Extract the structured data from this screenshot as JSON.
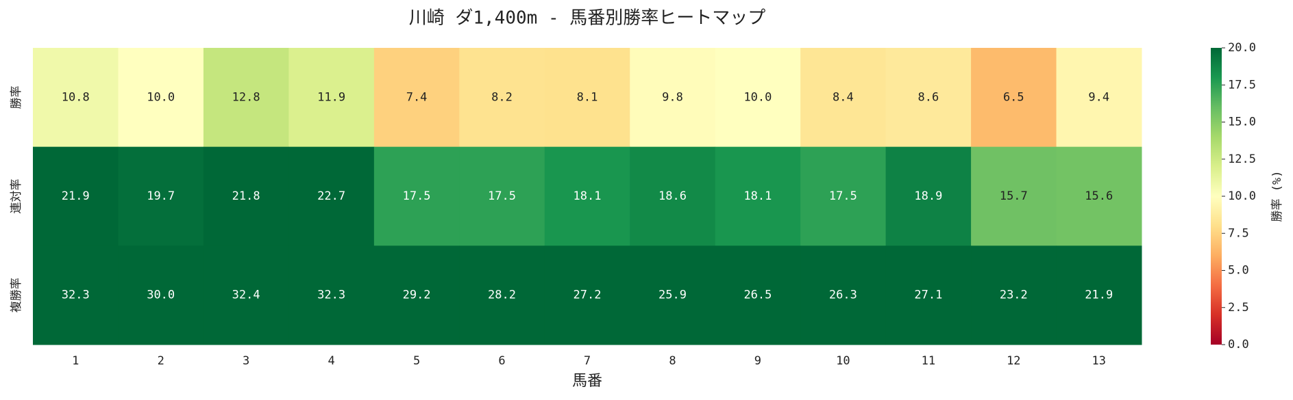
{
  "chart_data": {
    "type": "heatmap",
    "title": "川崎 ダ1,400m - 馬番別勝率ヒートマップ",
    "xlabel": "馬番",
    "colorbar_label": "勝率 (%)",
    "colormap": "RdYlGn",
    "categories": [
      "1",
      "2",
      "3",
      "4",
      "5",
      "6",
      "7",
      "8",
      "9",
      "10",
      "11",
      "12",
      "13"
    ],
    "series": [
      {
        "name": "勝率",
        "values": [
          10.8,
          10.0,
          12.8,
          11.9,
          7.4,
          8.2,
          8.1,
          9.8,
          10.0,
          8.4,
          8.6,
          6.5,
          9.4
        ],
        "value_labels": [
          "10.8",
          "10.0",
          "12.8",
          "11.9",
          "7.4",
          "8.2",
          "8.1",
          "9.8",
          "10.0",
          "8.4",
          "8.6",
          "6.5",
          "9.4"
        ]
      },
      {
        "name": "連対率",
        "values": [
          21.9,
          19.7,
          21.8,
          22.7,
          17.5,
          17.5,
          18.1,
          18.6,
          18.1,
          17.5,
          18.9,
          15.7,
          15.6
        ],
        "value_labels": [
          "21.9",
          "19.7",
          "21.8",
          "22.7",
          "17.5",
          "17.5",
          "18.1",
          "18.6",
          "18.1",
          "17.5",
          "18.9",
          "15.7",
          "15.6"
        ]
      },
      {
        "name": "複勝率",
        "values": [
          32.3,
          30.0,
          32.4,
          32.3,
          29.2,
          28.2,
          27.2,
          25.9,
          26.5,
          26.3,
          27.1,
          23.2,
          21.9
        ],
        "value_labels": [
          "32.3",
          "30.0",
          "32.4",
          "32.3",
          "29.2",
          "28.2",
          "27.2",
          "25.9",
          "26.5",
          "26.3",
          "27.1",
          "23.2",
          "21.9"
        ]
      }
    ],
    "clim": [
      0,
      20
    ],
    "cticks": [
      {
        "value": 0,
        "label": "0.0"
      },
      2.5,
      {
        "value": 5,
        "label": "5.0"
      },
      7.5,
      {
        "value": 10,
        "label": "10.0"
      },
      12.5,
      {
        "value": 15,
        "label": "15.0"
      },
      17.5,
      {
        "value": 20,
        "label": "20.0"
      }
    ]
  }
}
